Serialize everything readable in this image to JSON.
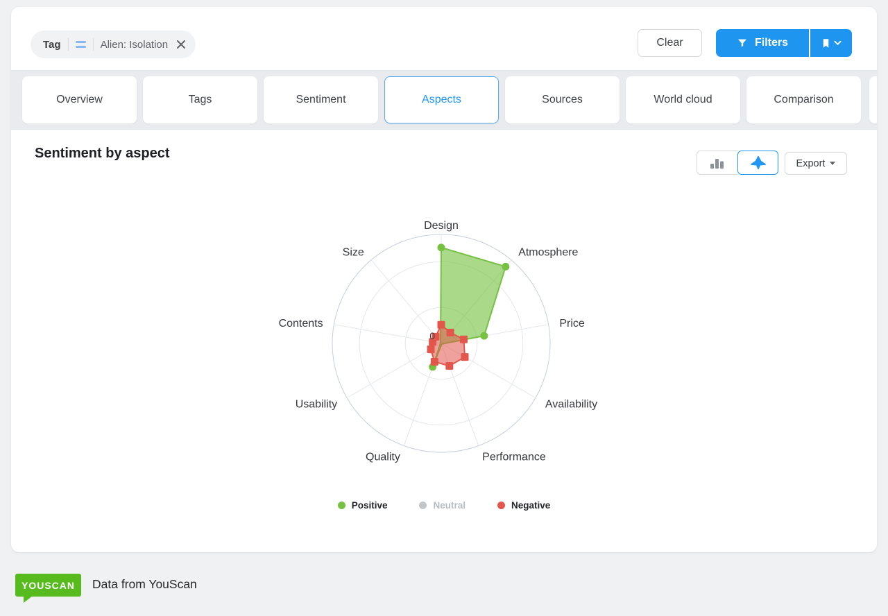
{
  "filter_bar": {
    "chip": {
      "field": "Tag",
      "operator_icon": "equals-icon",
      "value": "Alien: Isolation",
      "remove_icon": "close-icon"
    },
    "clear_label": "Clear",
    "filters_label": "Filters",
    "filters_icon": "filter-funnel-icon",
    "saved_filters_icon": "bookmark-icon",
    "saved_filters_caret": "chevron-down-icon",
    "primary_blue": "#1e96f0"
  },
  "tabs": [
    {
      "label": "Overview",
      "active": false
    },
    {
      "label": "Tags",
      "active": false
    },
    {
      "label": "Sentiment",
      "active": false
    },
    {
      "label": "Aspects",
      "active": true
    },
    {
      "label": "Sources",
      "active": false
    },
    {
      "label": "World cloud",
      "active": false
    },
    {
      "label": "Comparison",
      "active": false
    }
  ],
  "panel": {
    "title": "Sentiment by aspect",
    "export_label": "Export",
    "chart_type_toggle": {
      "bar_icon": "bar-chart-icon",
      "radar_icon": "radar-chart-icon",
      "active": "radar"
    }
  },
  "legend": [
    {
      "label": "Positive",
      "color": "#76c142",
      "enabled": true
    },
    {
      "label": "Neutral",
      "color": "#c3c6c9",
      "enabled": false
    },
    {
      "label": "Negative",
      "color": "#e2564c",
      "enabled": true
    }
  ],
  "chart_data": {
    "type": "radar",
    "title": "Sentiment by aspect",
    "categories": [
      "Design",
      "Atmosphere",
      "Price",
      "Availability",
      "Performance",
      "Quality",
      "Usability",
      "Contents",
      "Size"
    ],
    "series": [
      {
        "name": "Positive",
        "color": "#76c142",
        "marker": "circle",
        "hidden": false,
        "values": [
          0.88,
          0.92,
          0.4,
          0.01,
          0.01,
          0.23,
          0.01,
          0.01,
          0.01
        ]
      },
      {
        "name": "Neutral",
        "color": "#c3c6c9",
        "marker": "circle",
        "hidden": true,
        "values": [
          0,
          0,
          0,
          0,
          0,
          0,
          0,
          0,
          0
        ]
      },
      {
        "name": "Negative",
        "color": "#e2564c",
        "marker": "square",
        "hidden": false,
        "values": [
          0.17,
          0.13,
          0.21,
          0.25,
          0.22,
          0.18,
          0.11,
          0.08,
          0.08
        ]
      }
    ],
    "axis": {
      "min_label": "0",
      "rings": [
        0.33,
        0.75,
        1.0
      ],
      "unit": "fraction of outer ring radius"
    },
    "legend_position": "bottom",
    "grid": true
  },
  "footer": {
    "logo_text": "YOUSCAN",
    "logo_color": "#57ba1d",
    "caption": "Data from YouScan"
  }
}
